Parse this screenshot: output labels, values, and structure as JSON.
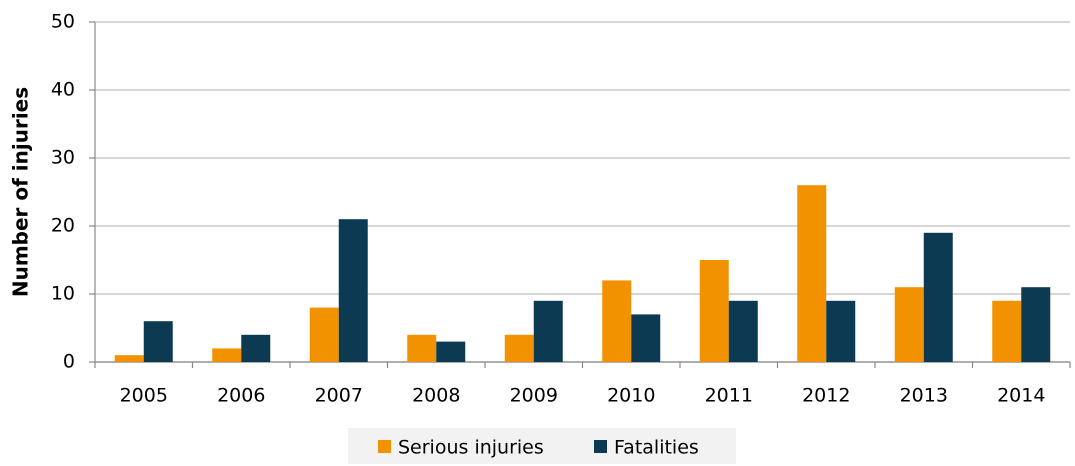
{
  "chart_data": {
    "type": "bar",
    "y_label": "Number of injuries",
    "categories": [
      "2005",
      "2006",
      "2007",
      "2008",
      "2009",
      "2010",
      "2011",
      "2012",
      "2013",
      "2014"
    ],
    "series": [
      {
        "name": "Serious injuries",
        "color": "#f39200",
        "values": [
          1,
          2,
          8,
          4,
          4,
          12,
          15,
          26,
          11,
          9
        ]
      },
      {
        "name": "Fatalities",
        "color": "#0c3a52",
        "values": [
          6,
          4,
          21,
          3,
          9,
          7,
          9,
          9,
          19,
          11
        ]
      }
    ],
    "ylim": [
      0,
      50
    ],
    "yticks": [
      0,
      10,
      20,
      30,
      40,
      50
    ],
    "grid": true,
    "legend": "bottom"
  }
}
